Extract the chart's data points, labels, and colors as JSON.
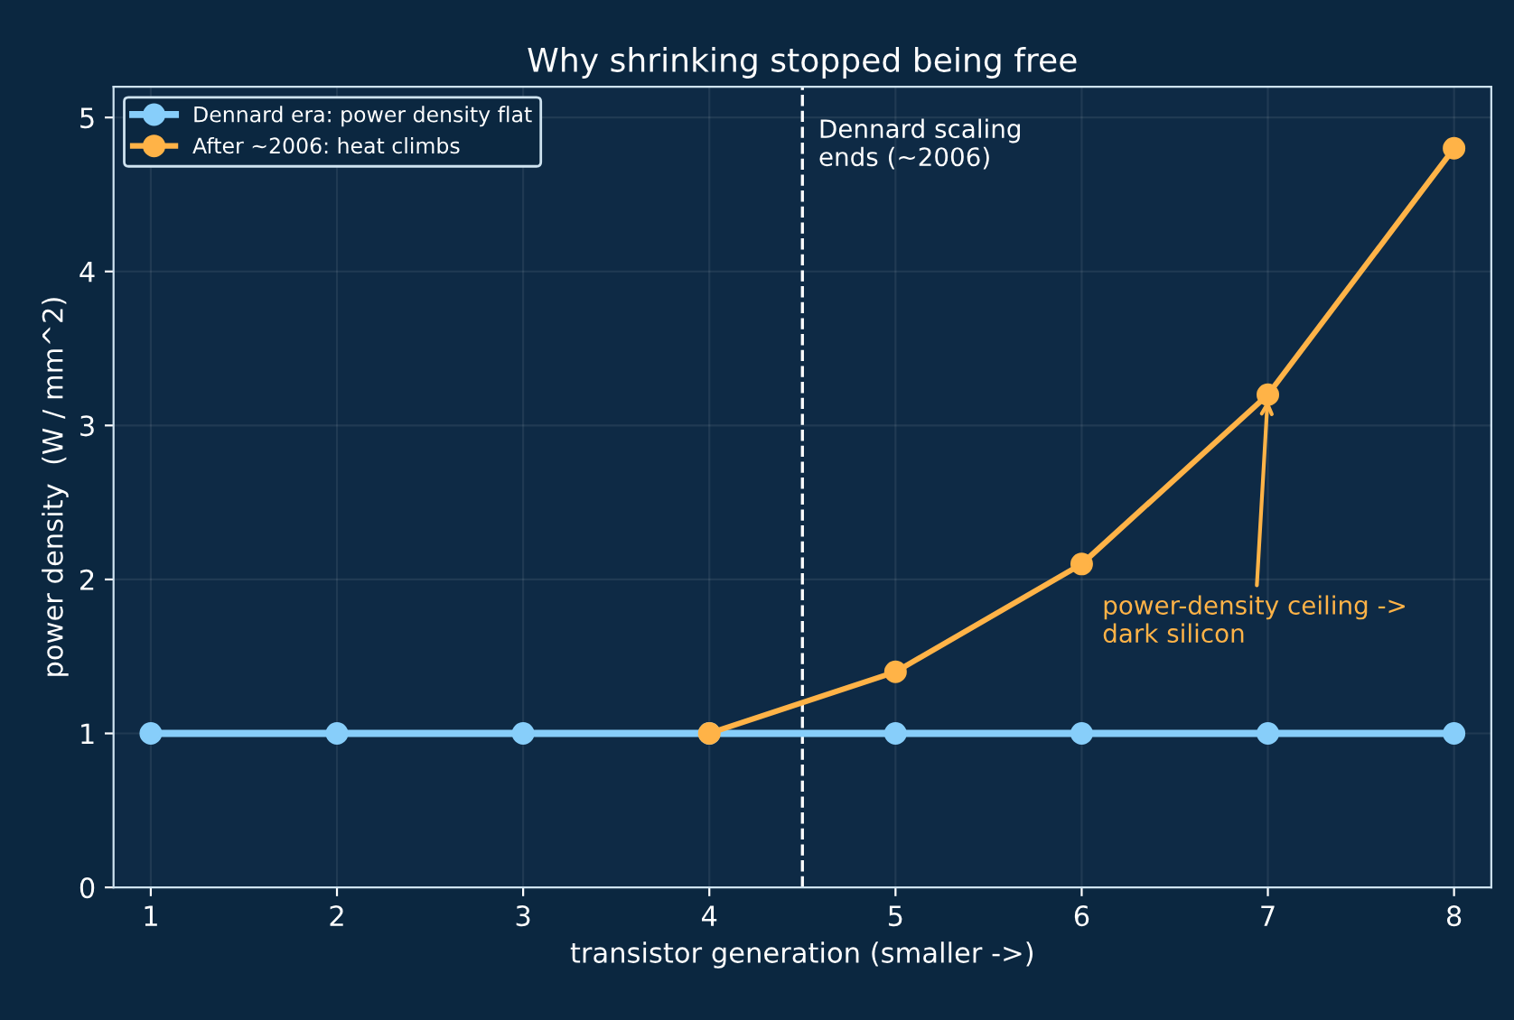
{
  "chart_data": {
    "type": "line",
    "title": "Why shrinking stopped being free",
    "xlabel": "transistor generation (smaller ->)",
    "ylabel": "power density  (W / mm^2)",
    "series": [
      {
        "name": "Dennard era: power density flat",
        "color": "#87cefa",
        "x": [
          1,
          2,
          3,
          4,
          5,
          6,
          7,
          8
        ],
        "values": [
          1,
          1,
          1,
          1,
          1,
          1,
          1,
          1
        ]
      },
      {
        "name": "After ~2006: heat climbs",
        "color": "#ffb347",
        "x": [
          4,
          5,
          6,
          7,
          8
        ],
        "values": [
          1,
          1.4,
          2.1,
          3.2,
          4.8
        ]
      }
    ],
    "xlim": [
      0.8,
      8.2
    ],
    "xticks": [
      1,
      2,
      3,
      4,
      5,
      6,
      7,
      8
    ],
    "ylim": [
      0,
      5.2
    ],
    "yticks": [
      0,
      1,
      2,
      3,
      4,
      5
    ],
    "ref_lines": [
      {
        "axis": "x",
        "value": 4.5,
        "label": "Dennard scaling\nends (~2006)",
        "color": "#ffffff",
        "line_style": "dashed"
      }
    ],
    "annotations": [
      {
        "text": "power-density ceiling ->\ndark silicon",
        "x": 7,
        "y": 3.2
      }
    ],
    "grid": true,
    "legend": "top left",
    "marker": "circle",
    "line_style": "solid"
  }
}
